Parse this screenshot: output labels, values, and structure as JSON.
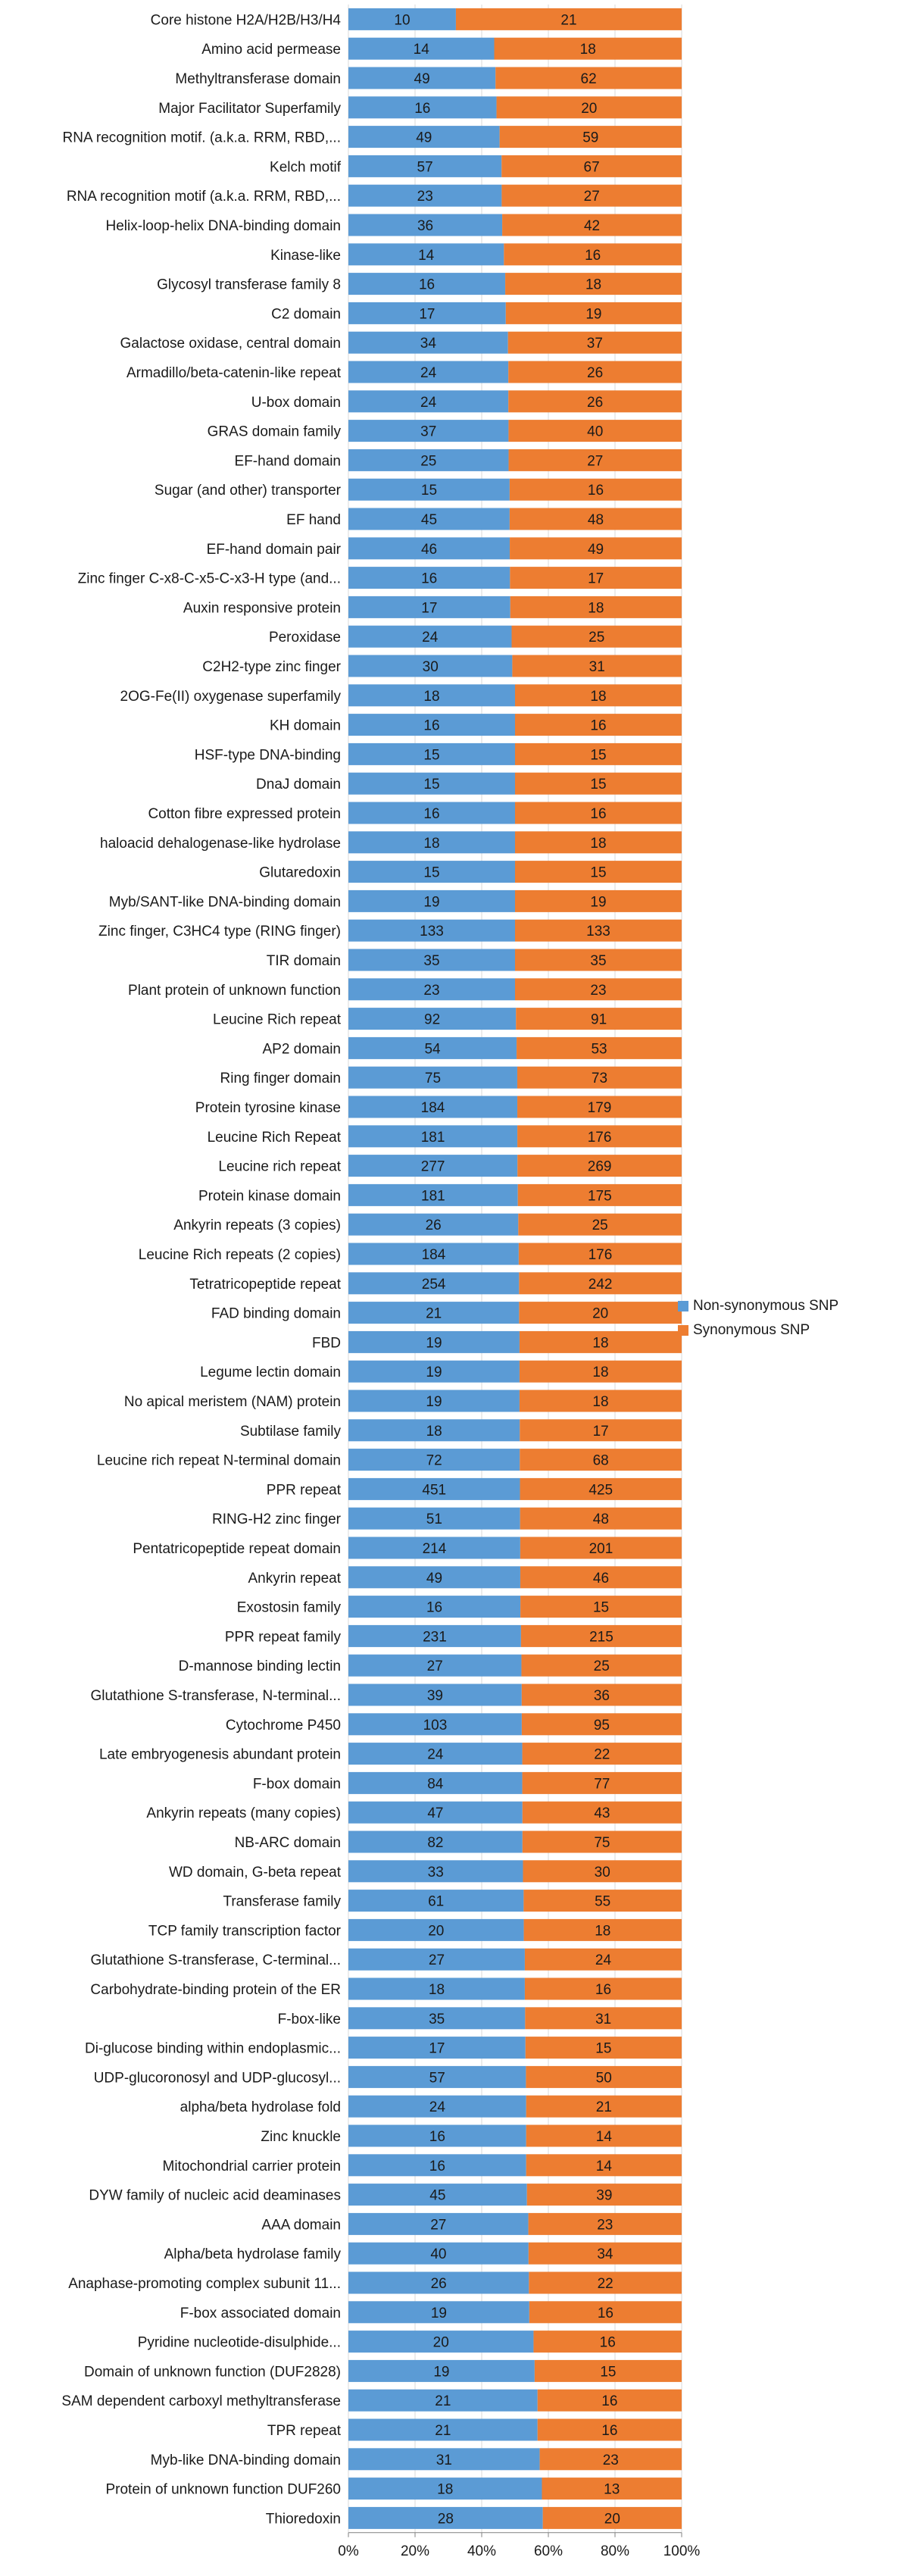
{
  "chart_data": {
    "type": "bar",
    "orientation": "horizontal",
    "stacked": "percent",
    "title": "",
    "xlabel": "",
    "ylabel": "",
    "xlim": [
      0,
      100
    ],
    "x_ticks": [
      "0%",
      "20%",
      "40%",
      "60%",
      "80%",
      "100%"
    ],
    "legend_position": "right",
    "categories": [
      "Core histone H2A/H2B/H3/H4",
      "Amino acid permease",
      "Methyltransferase domain",
      "Major Facilitator Superfamily",
      "RNA recognition motif. (a.k.a. RRM, RBD,...",
      "Kelch motif",
      "RNA recognition motif (a.k.a. RRM, RBD,...",
      "Helix-loop-helix DNA-binding domain",
      "Kinase-like",
      "Glycosyl transferase family 8",
      "C2 domain",
      "Galactose oxidase, central domain",
      "Armadillo/beta-catenin-like repeat",
      "U-box domain",
      "GRAS domain family",
      "EF-hand domain",
      "Sugar (and other) transporter",
      "EF hand",
      "EF-hand domain pair",
      "Zinc finger C-x8-C-x5-C-x3-H type (and...",
      "Auxin responsive protein",
      "Peroxidase",
      "C2H2-type zinc finger",
      "2OG-Fe(II) oxygenase superfamily",
      "KH domain",
      "HSF-type DNA-binding",
      "DnaJ domain",
      "Cotton fibre expressed protein",
      "haloacid dehalogenase-like hydrolase",
      "Glutaredoxin",
      "Myb/SANT-like DNA-binding domain",
      "Zinc finger, C3HC4 type (RING finger)",
      "TIR domain",
      "Plant protein of unknown function",
      "Leucine Rich repeat",
      "AP2 domain",
      "Ring finger domain",
      "Protein tyrosine kinase",
      "Leucine Rich Repeat",
      "Leucine rich repeat",
      "Protein kinase domain",
      "Ankyrin repeats (3 copies)",
      "Leucine Rich repeats (2 copies)",
      "Tetratricopeptide repeat",
      "FAD binding domain",
      "FBD",
      "Legume lectin domain",
      "No apical meristem (NAM) protein",
      "Subtilase family",
      "Leucine rich repeat N-terminal domain",
      "PPR repeat",
      "RING-H2 zinc finger",
      "Pentatricopeptide repeat domain",
      "Ankyrin repeat",
      "Exostosin family",
      "PPR repeat family",
      "D-mannose binding lectin",
      "Glutathione S-transferase, N-terminal...",
      "Cytochrome P450",
      "Late embryogenesis abundant protein",
      "F-box domain",
      "Ankyrin repeats (many copies)",
      "NB-ARC domain",
      "WD domain, G-beta repeat",
      "Transferase family",
      "TCP family transcription factor",
      "Glutathione S-transferase, C-terminal...",
      "Carbohydrate-binding protein of the ER",
      "F-box-like",
      "Di-glucose binding within endoplasmic...",
      "UDP-glucoronosyl and UDP-glucosyl...",
      "alpha/beta hydrolase fold",
      "Zinc knuckle",
      "Mitochondrial carrier protein",
      "DYW family of nucleic acid deaminases",
      "AAA domain",
      "Alpha/beta hydrolase family",
      "Anaphase-promoting complex subunit 11...",
      "F-box associated domain",
      "Pyridine nucleotide-disulphide...",
      "Domain of unknown function (DUF2828)",
      "SAM dependent carboxyl methyltransferase",
      "TPR repeat",
      "Myb-like DNA-binding domain",
      "Protein of unknown function DUF260",
      "Thioredoxin"
    ],
    "series": [
      {
        "name": "Non-synonymous SNP",
        "color": "#5B9BD5",
        "values": [
          10,
          14,
          49,
          16,
          49,
          57,
          23,
          36,
          14,
          16,
          17,
          34,
          24,
          24,
          37,
          25,
          15,
          45,
          46,
          16,
          17,
          24,
          30,
          18,
          16,
          15,
          15,
          16,
          18,
          15,
          19,
          133,
          35,
          23,
          92,
          54,
          75,
          184,
          181,
          277,
          181,
          26,
          184,
          254,
          21,
          19,
          19,
          19,
          18,
          72,
          451,
          51,
          214,
          49,
          16,
          231,
          27,
          39,
          103,
          24,
          84,
          47,
          82,
          33,
          61,
          20,
          27,
          18,
          35,
          17,
          57,
          24,
          16,
          16,
          45,
          27,
          40,
          26,
          19,
          20,
          19,
          21,
          21,
          31,
          18,
          28
        ]
      },
      {
        "name": "Synonymous SNP",
        "color": "#ED7D31",
        "values": [
          21,
          18,
          62,
          20,
          59,
          67,
          27,
          42,
          16,
          18,
          19,
          37,
          26,
          26,
          40,
          27,
          16,
          48,
          49,
          17,
          18,
          25,
          31,
          18,
          16,
          15,
          15,
          16,
          18,
          15,
          19,
          133,
          35,
          23,
          91,
          53,
          73,
          179,
          176,
          269,
          175,
          25,
          176,
          242,
          20,
          18,
          18,
          18,
          17,
          68,
          425,
          48,
          201,
          46,
          15,
          215,
          25,
          36,
          95,
          22,
          77,
          43,
          75,
          30,
          55,
          18,
          24,
          16,
          31,
          15,
          50,
          21,
          14,
          14,
          39,
          23,
          34,
          22,
          16,
          16,
          15,
          16,
          16,
          23,
          13,
          20
        ]
      }
    ]
  }
}
